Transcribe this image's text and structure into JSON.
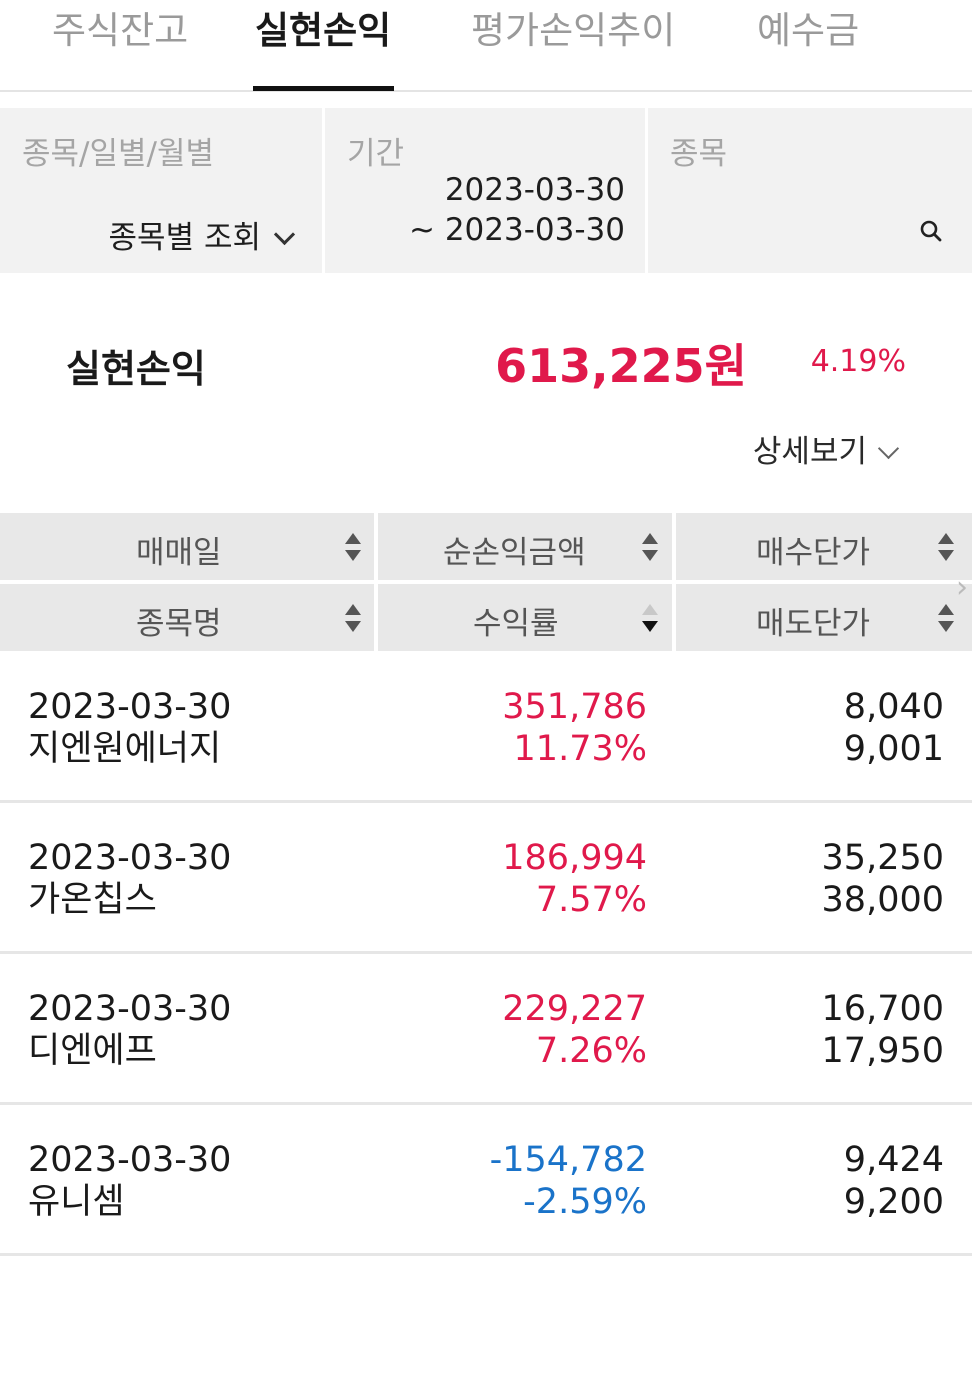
{
  "tabs": [
    "주식잔고",
    "실현손익",
    "평가손익추이",
    "예수금"
  ],
  "active_tab_index": 1,
  "filters": {
    "type_label": "종목/일별/월별",
    "type_value": "종목별 조회",
    "period_label": "기간",
    "period_start": "2023-03-30",
    "period_end": "~ 2023-03-30",
    "stock_label": "종목"
  },
  "summary": {
    "label": "실현손익",
    "amount": "613,225원",
    "rate": "4.19%",
    "detail_label": "상세보기"
  },
  "columns": {
    "trade_date": "매매일",
    "net_pl": "순손익금액",
    "buy_price": "매수단가",
    "stock_name": "종목명",
    "return_rate": "수익률",
    "sell_price": "매도단가"
  },
  "rows": [
    {
      "date": "2023-03-30",
      "name": "지엔원에너지",
      "pl": "351,786",
      "rate": "11.73%",
      "buy": "8,040",
      "sell": "9,001",
      "sign": "pos"
    },
    {
      "date": "2023-03-30",
      "name": "가온칩스",
      "pl": "186,994",
      "rate": "7.57%",
      "buy": "35,250",
      "sell": "38,000",
      "sign": "pos"
    },
    {
      "date": "2023-03-30",
      "name": "디엔에프",
      "pl": "229,227",
      "rate": "7.26%",
      "buy": "16,700",
      "sell": "17,950",
      "sign": "pos"
    },
    {
      "date": "2023-03-30",
      "name": "유니셈",
      "pl": "-154,782",
      "rate": "-2.59%",
      "buy": "9,424",
      "sell": "9,200",
      "sign": "neg"
    }
  ],
  "colors": {
    "positive": "#e0194b",
    "negative": "#1a73c9"
  }
}
